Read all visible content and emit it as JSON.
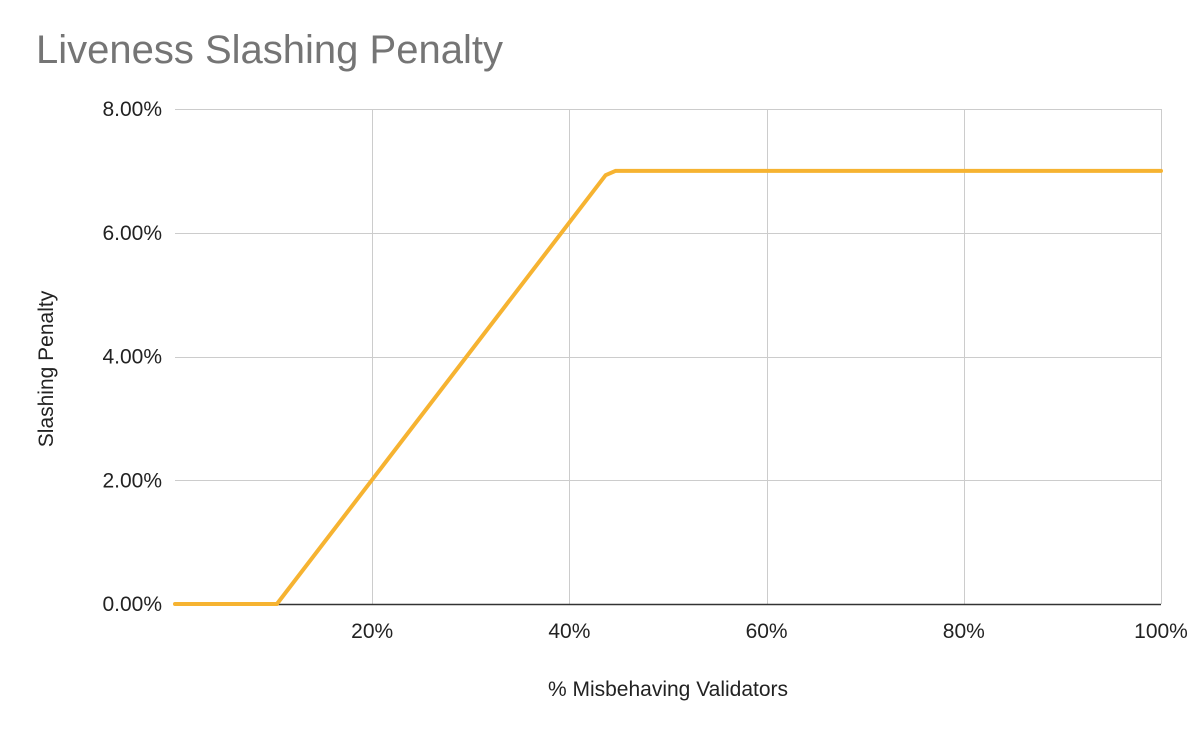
{
  "chart_data": {
    "type": "line",
    "title": "Liveness Slashing Penalty",
    "xlabel": "% Misbehaving Validators",
    "ylabel": "Slashing Penalty",
    "xlim": [
      0,
      100
    ],
    "ylim": [
      0,
      8
    ],
    "x_ticks": [
      20,
      40,
      60,
      80,
      100
    ],
    "x_tick_labels": [
      "20%",
      "40%",
      "60%",
      "80%",
      "100%"
    ],
    "y_ticks": [
      0,
      2,
      4,
      6,
      8
    ],
    "y_tick_labels": [
      "0.00%",
      "2.00%",
      "4.00%",
      "6.00%",
      "8.00%"
    ],
    "grid": true,
    "legend": "none",
    "series": [
      {
        "color": "#F6B331",
        "x": [
          0,
          10.33,
          43.67,
          44.67,
          100
        ],
        "y": [
          0,
          0,
          6.93,
          7.0,
          7.0
        ]
      }
    ]
  }
}
